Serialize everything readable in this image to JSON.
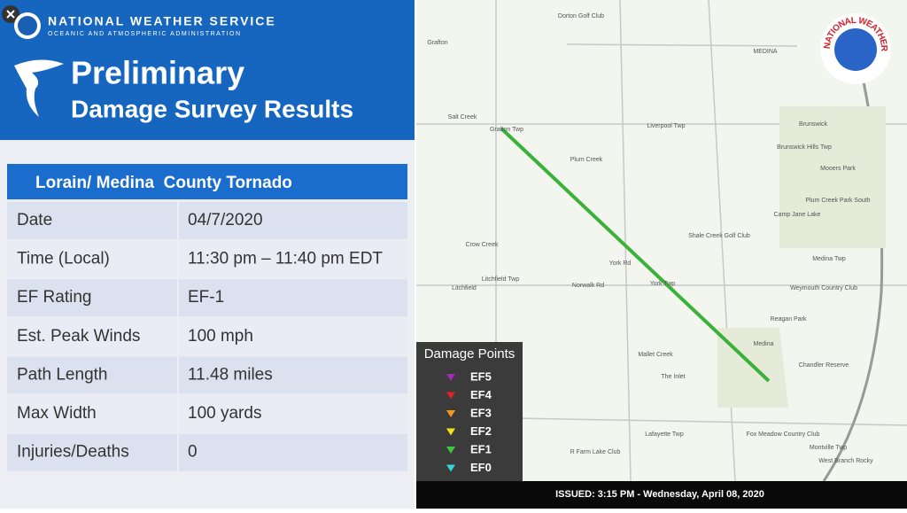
{
  "header": {
    "agency": "NATIONAL WEATHER SERVICE",
    "subagency": "OCEANIC AND ATMOSPHERIC ADMINISTRATION",
    "title_line1": "Preliminary",
    "title_line2": "Damage Survey Results"
  },
  "table": {
    "title": "Lorain/ Medina  County Tornado",
    "rows": [
      [
        "Date",
        "04/7/2020"
      ],
      [
        "Time (Local)",
        "11:30 pm – 11:40 pm EDT"
      ],
      [
        "EF Rating",
        "EF-1"
      ],
      [
        "Est. Peak Winds",
        "100 mph"
      ],
      [
        "Path Length",
        "11.48 miles"
      ],
      [
        "Max Width",
        "100 yards"
      ],
      [
        "Injuries/Deaths",
        "0"
      ]
    ]
  },
  "map": {
    "logo_text": "NATIONAL WEATHER SERVICE",
    "places": [
      "Grafton",
      "Dorton Golf Club",
      "MEDINA",
      "Brunswick",
      "Liverpool Twp",
      "Grafton Twp",
      "Salt Creek",
      "Plum Creek",
      "Brunswick Hills Twp",
      "Mooers Park",
      "Plum Creek Park South",
      "Camp Jane Lake",
      "Shale Creek Golf Club",
      "Crow Creek",
      "York Rd",
      "York Twp",
      "Norwalk Rd",
      "Litchfield",
      "Litchfield Twp",
      "Medina Twp",
      "Weymouth Country Club",
      "Reagan Park",
      "Medina",
      "Chandler Reserve",
      "Mallet Creek",
      "The Inlet",
      "Lafayette Twp",
      "R Farm Lake Club",
      "Fox Meadow Country Club",
      "Montville Twp",
      "West Branch Rocky"
    ]
  },
  "legend": {
    "title": "Damage Points",
    "items": [
      {
        "label": "EF5",
        "color": "#9b2fae"
      },
      {
        "label": "EF4",
        "color": "#e0202a"
      },
      {
        "label": "EF3",
        "color": "#f39a1e"
      },
      {
        "label": "EF2",
        "color": "#f2e21a"
      },
      {
        "label": "EF1",
        "color": "#3cc83c"
      },
      {
        "label": "EF0",
        "color": "#33d6d6"
      }
    ]
  },
  "footer": {
    "issued": "ISSUED: 3:15 PM - Wednesday, April 08, 2020"
  }
}
